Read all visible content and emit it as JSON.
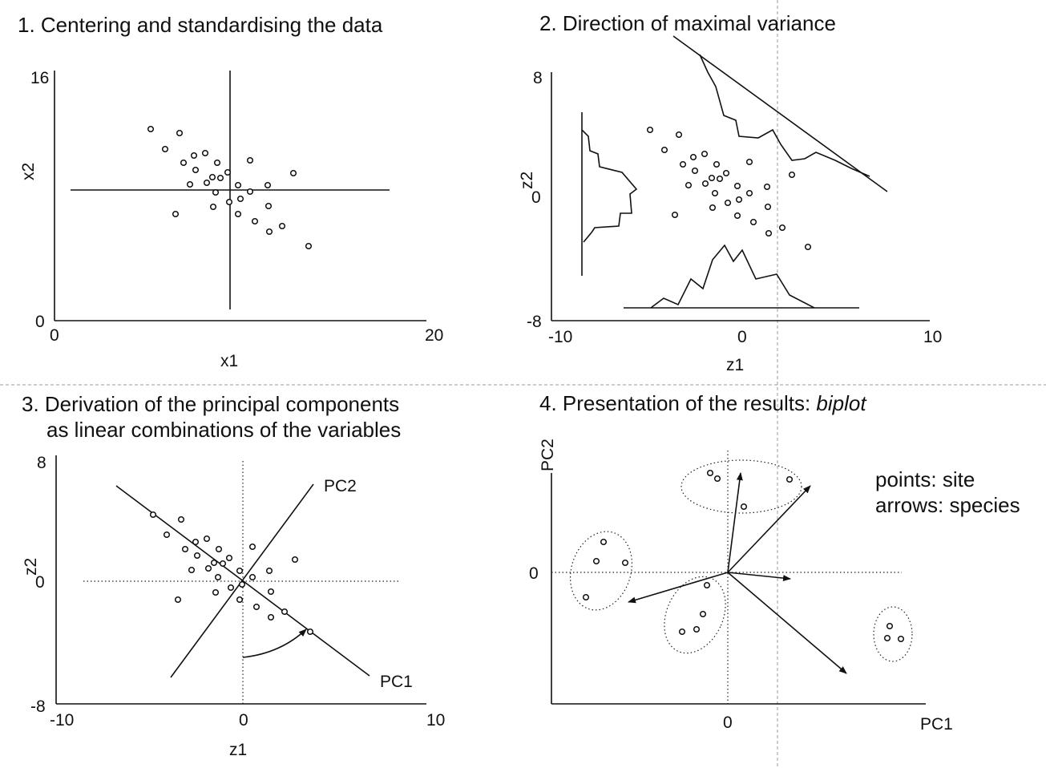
{
  "panels": {
    "p1": {
      "title": "1. Centering and standardising the data",
      "x_label": "x1",
      "y_label": "x2",
      "x_min": "0",
      "x_max": "20",
      "y_min": "0",
      "y_max": "16"
    },
    "p2": {
      "title": "2. Direction of maximal variance",
      "x_label": "z1",
      "y_label": "z2",
      "x_min": "-10",
      "x_mid": "0",
      "x_max": "10",
      "y_min": "-8",
      "y_mid": "0",
      "y_max": "8"
    },
    "p3": {
      "title_line1": "3. Derivation of the principal components",
      "title_line2": "as linear combinations of the variables",
      "x_label": "z1",
      "y_label": "z2",
      "x_min": "-10",
      "x_mid": "0",
      "x_max": "10",
      "y_min": "-8",
      "y_mid": "0",
      "y_max": "8",
      "pc1_label": "PC1",
      "pc2_label": "PC2"
    },
    "p4": {
      "title_prefix": "4. Presentation of the results: ",
      "title_italic": "biplot",
      "x_label": "PC1",
      "y_label": "PC2",
      "x_zero": "0",
      "y_zero": "0",
      "legend_points": "points: site",
      "legend_arrows": "arrows: species"
    }
  }
}
